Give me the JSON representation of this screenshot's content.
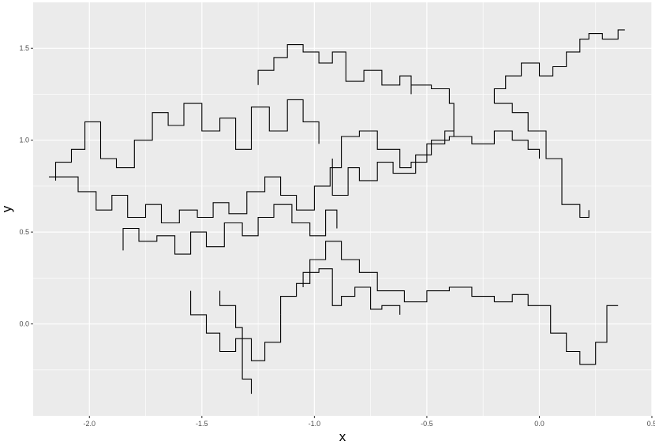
{
  "chart_data": {
    "type": "line",
    "xlabel": "x",
    "ylabel": "y",
    "xlim": [
      -2.25,
      0.5
    ],
    "ylim": [
      -0.5,
      1.75
    ],
    "x_ticks": [
      -2.0,
      -1.5,
      -1.0,
      -0.5,
      0.0,
      0.5
    ],
    "x_tick_labels": [
      "-2.0",
      "-1.5",
      "-1.0",
      "-0.5",
      "0.0",
      "0.5"
    ],
    "y_ticks": [
      0.0,
      0.5,
      1.0,
      1.5
    ],
    "y_tick_labels": [
      "0.0",
      "0.5",
      "1.0",
      "1.5"
    ],
    "grid": true,
    "panel_color": "#ebebeb",
    "grid_color": "#ffffff",
    "line_color": "#000000",
    "series": [
      {
        "x": [
          -2.18,
          -2.05,
          -2.05,
          -1.97,
          -1.97,
          -1.9,
          -1.9,
          -1.83,
          -1.83,
          -1.75,
          -1.75,
          -1.68,
          -1.68,
          -1.6,
          -1.6,
          -1.52,
          -1.52,
          -1.45,
          -1.45,
          -1.38,
          -1.38,
          -1.3,
          -1.3,
          -1.22,
          -1.22,
          -1.15,
          -1.15,
          -1.08,
          -1.08,
          -1.0,
          -1.0,
          -0.93,
          -0.93,
          -0.88,
          -0.88,
          -0.8,
          -0.8,
          -0.72,
          -0.72,
          -0.62,
          -0.62,
          -0.57,
          -0.57,
          -0.5,
          -0.5,
          -0.42,
          -0.42,
          -0.38,
          -0.38
        ],
        "y": [
          0.8,
          0.8,
          0.72,
          0.72,
          0.62,
          0.62,
          0.7,
          0.7,
          0.58,
          0.58,
          0.65,
          0.65,
          0.55,
          0.55,
          0.62,
          0.62,
          0.58,
          0.58,
          0.66,
          0.66,
          0.6,
          0.6,
          0.72,
          0.72,
          0.8,
          0.8,
          0.7,
          0.7,
          0.62,
          0.62,
          0.75,
          0.75,
          0.85,
          0.85,
          1.02,
          1.02,
          1.05,
          1.05,
          0.95,
          0.95,
          0.85,
          0.85,
          0.88,
          0.88,
          0.98,
          0.98,
          1.05,
          1.05,
          1.02
        ]
      },
      {
        "x": [
          -2.15,
          -2.15,
          -2.08,
          -2.08,
          -2.02,
          -2.02,
          -1.95,
          -1.95,
          -1.88,
          -1.88,
          -1.8,
          -1.8,
          -1.72,
          -1.72,
          -1.65,
          -1.65,
          -1.58,
          -1.58,
          -1.5,
          -1.5,
          -1.42,
          -1.42,
          -1.35,
          -1.35,
          -1.28,
          -1.28,
          -1.2,
          -1.2,
          -1.12,
          -1.12,
          -1.05,
          -1.05,
          -0.98,
          -0.98
        ],
        "y": [
          0.78,
          0.88,
          0.88,
          0.95,
          0.95,
          1.1,
          1.1,
          0.9,
          0.9,
          0.85,
          0.85,
          1.0,
          1.0,
          1.15,
          1.15,
          1.08,
          1.08,
          1.2,
          1.2,
          1.05,
          1.05,
          1.12,
          1.12,
          0.95,
          0.95,
          1.18,
          1.18,
          1.05,
          1.05,
          1.22,
          1.22,
          1.1,
          1.1,
          0.98
        ]
      },
      {
        "x": [
          -1.85,
          -1.85,
          -1.78,
          -1.78,
          -1.7,
          -1.7,
          -1.62,
          -1.62,
          -1.55,
          -1.55,
          -1.48,
          -1.48,
          -1.4,
          -1.4,
          -1.32,
          -1.32,
          -1.25,
          -1.25,
          -1.18,
          -1.18,
          -1.1,
          -1.1,
          -1.02,
          -1.02,
          -0.95,
          -0.95,
          -0.9,
          -0.9
        ],
        "y": [
          0.4,
          0.52,
          0.52,
          0.45,
          0.45,
          0.48,
          0.48,
          0.38,
          0.38,
          0.5,
          0.5,
          0.42,
          0.42,
          0.55,
          0.55,
          0.48,
          0.48,
          0.58,
          0.58,
          0.65,
          0.65,
          0.55,
          0.55,
          0.48,
          0.48,
          0.62,
          0.62,
          0.52
        ]
      },
      {
        "x": [
          -1.25,
          -1.25,
          -1.18,
          -1.18,
          -1.12,
          -1.12,
          -1.05,
          -1.05,
          -0.98,
          -0.98,
          -0.92,
          -0.92,
          -0.86,
          -0.86,
          -0.78,
          -0.78,
          -0.7,
          -0.7,
          -0.62,
          -0.62,
          -0.57,
          -0.57
        ],
        "y": [
          1.3,
          1.38,
          1.38,
          1.45,
          1.45,
          1.52,
          1.52,
          1.48,
          1.48,
          1.42,
          1.42,
          1.48,
          1.48,
          1.32,
          1.32,
          1.38,
          1.38,
          1.3,
          1.3,
          1.35,
          1.35,
          1.25
        ]
      },
      {
        "x": [
          -0.57,
          -0.48,
          -0.48,
          -0.4,
          -0.4,
          -0.38,
          -0.38
        ],
        "y": [
          1.3,
          1.3,
          1.28,
          1.28,
          1.2,
          1.2,
          1.05
        ]
      },
      {
        "x": [
          -0.92,
          -0.92,
          -0.85,
          -0.85,
          -0.8,
          -0.8,
          -0.72,
          -0.72,
          -0.65,
          -0.65,
          -0.55,
          -0.55,
          -0.48,
          -0.48,
          -0.4,
          -0.4,
          -0.3,
          -0.3,
          -0.2,
          -0.2,
          -0.12,
          -0.12,
          -0.05,
          -0.05,
          0.0,
          0.0
        ],
        "y": [
          0.9,
          0.7,
          0.7,
          0.85,
          0.85,
          0.78,
          0.78,
          0.88,
          0.88,
          0.82,
          0.82,
          0.92,
          0.92,
          1.0,
          1.0,
          1.02,
          1.02,
          0.98,
          0.98,
          1.05,
          1.05,
          1.0,
          1.0,
          0.95,
          0.95,
          0.9
        ]
      },
      {
        "x": [
          -0.2,
          -0.2,
          -0.15,
          -0.15,
          -0.08,
          -0.08,
          0.0,
          0.0,
          0.06,
          0.06,
          0.12,
          0.12,
          0.18,
          0.18,
          0.22,
          0.22,
          0.28,
          0.28,
          0.35,
          0.35,
          0.38
        ],
        "y": [
          1.2,
          1.28,
          1.28,
          1.35,
          1.35,
          1.42,
          1.42,
          1.35,
          1.35,
          1.4,
          1.4,
          1.48,
          1.48,
          1.55,
          1.55,
          1.58,
          1.58,
          1.55,
          1.55,
          1.6,
          1.6
        ]
      },
      {
        "x": [
          -0.2,
          -0.12,
          -0.12,
          -0.05,
          -0.05,
          0.03,
          0.03,
          0.1,
          0.1,
          0.18,
          0.18,
          0.22,
          0.22
        ],
        "y": [
          1.2,
          1.2,
          1.15,
          1.15,
          1.05,
          1.05,
          0.9,
          0.9,
          0.65,
          0.65,
          0.58,
          0.58,
          0.62
        ]
      },
      {
        "x": [
          -1.55,
          -1.55,
          -1.48,
          -1.48,
          -1.42,
          -1.42,
          -1.35,
          -1.35,
          -1.28,
          -1.28,
          -1.22,
          -1.22,
          -1.15,
          -1.15
        ],
        "y": [
          0.18,
          0.05,
          0.05,
          -0.05,
          -0.05,
          -0.15,
          -0.15,
          -0.08,
          -0.08,
          -0.2,
          -0.2,
          -0.1,
          -0.1,
          0.05
        ]
      },
      {
        "x": [
          -1.42,
          -1.42,
          -1.35,
          -1.35,
          -1.32,
          -1.32,
          -1.28,
          -1.28
        ],
        "y": [
          0.18,
          0.1,
          0.1,
          -0.02,
          -0.02,
          -0.3,
          -0.3,
          -0.38
        ]
      },
      {
        "x": [
          -1.15,
          -1.15,
          -1.08,
          -1.08,
          -1.02,
          -1.02,
          -0.95,
          -0.95,
          -0.88,
          -0.88,
          -0.8,
          -0.8,
          -0.72,
          -0.72,
          -0.6,
          -0.6,
          -0.5,
          -0.5,
          -0.4,
          -0.4,
          -0.3,
          -0.3,
          -0.2,
          -0.2
        ],
        "y": [
          0.05,
          0.15,
          0.15,
          0.22,
          0.22,
          0.35,
          0.35,
          0.45,
          0.45,
          0.35,
          0.35,
          0.28,
          0.28,
          0.18,
          0.18,
          0.12,
          0.12,
          0.18,
          0.18,
          0.2,
          0.2,
          0.15,
          0.15,
          0.12
        ]
      },
      {
        "x": [
          -0.2,
          -0.12,
          -0.12,
          -0.05,
          -0.05,
          0.05,
          0.05,
          0.12,
          0.12,
          0.18,
          0.18,
          0.25,
          0.25,
          0.3,
          0.3,
          0.35
        ],
        "y": [
          0.12,
          0.12,
          0.16,
          0.16,
          0.1,
          0.1,
          -0.05,
          -0.05,
          -0.15,
          -0.15,
          -0.22,
          -0.22,
          -0.1,
          -0.1,
          0.1,
          0.1
        ]
      },
      {
        "x": [
          -1.05,
          -1.05,
          -0.98,
          -0.98,
          -0.92,
          -0.92,
          -0.88,
          -0.88,
          -0.82,
          -0.82,
          -0.75,
          -0.75,
          -0.7,
          -0.7,
          -0.62,
          -0.62
        ],
        "y": [
          0.2,
          0.28,
          0.28,
          0.3,
          0.3,
          0.1,
          0.1,
          0.15,
          0.15,
          0.2,
          0.2,
          0.08,
          0.08,
          0.1,
          0.1,
          0.05
        ]
      }
    ]
  }
}
